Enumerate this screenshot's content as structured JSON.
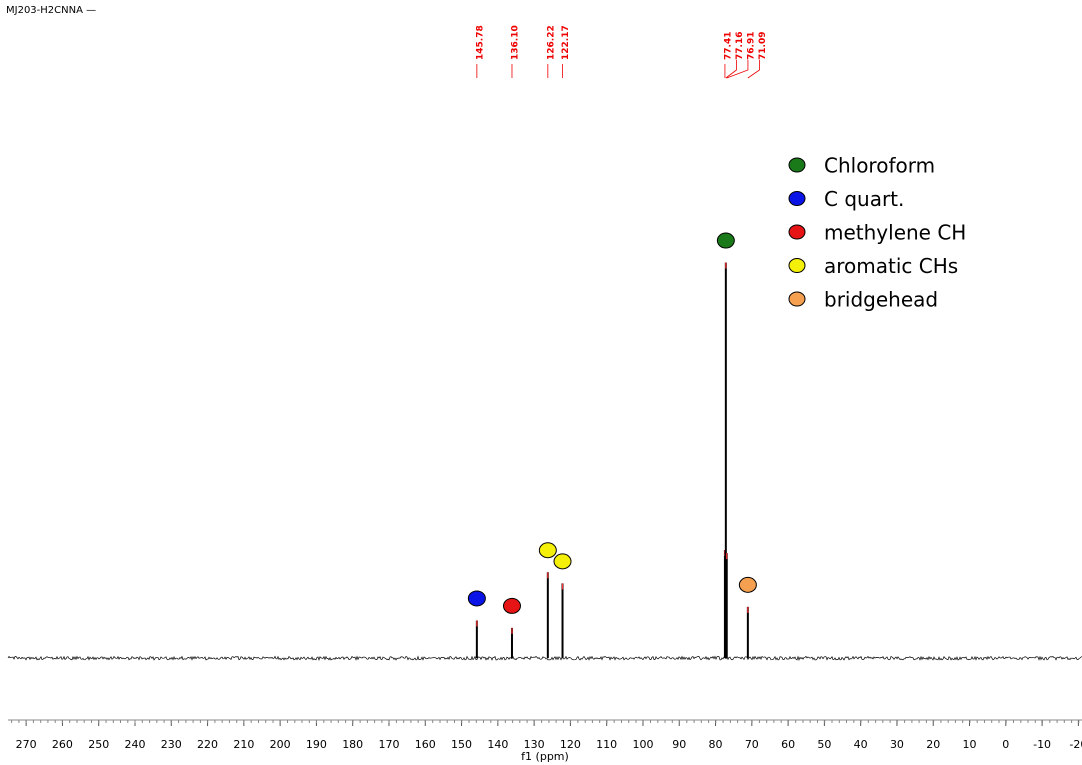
{
  "chart_data": {
    "type": "spectrum",
    "title": "MJ203-H2CNNA —",
    "xlabel": "f1 (ppm)",
    "xlim": [
      275,
      -21
    ],
    "xticks": [
      270,
      260,
      250,
      240,
      230,
      220,
      210,
      200,
      190,
      180,
      170,
      160,
      150,
      140,
      130,
      120,
      110,
      100,
      90,
      80,
      70,
      60,
      50,
      40,
      30,
      20,
      10,
      0,
      -10,
      -20
    ],
    "ylim": [
      -10,
      100
    ],
    "series": [
      {
        "name": "Chloroform",
        "color": "#1a7a1a",
        "x": [
          77.41,
          77.16,
          76.91
        ],
        "x_labels": [
          "77.41",
          "77.16",
          "76.91"
        ],
        "values": [
          17.5,
          64,
          17
        ]
      },
      {
        "name": "C quart.",
        "color": "#0a14e6",
        "x": [
          145.78
        ],
        "x_labels": [
          "145.78"
        ],
        "values": [
          6.1
        ]
      },
      {
        "name": "methylene CH",
        "color": "#e61414",
        "x": [
          136.1
        ],
        "x_labels": [
          "136.10"
        ],
        "values": [
          4.9
        ]
      },
      {
        "name": "aromatic CHs",
        "color": "#f5f00a",
        "x": [
          126.22,
          122.17
        ],
        "x_labels": [
          "126.22",
          "122.17"
        ],
        "values": [
          13.9,
          12.1
        ]
      },
      {
        "name": "bridgehead",
        "color": "#f5a050",
        "x": [
          71.09
        ],
        "x_labels": [
          "71.09"
        ],
        "values": [
          8.3
        ]
      }
    ]
  }
}
